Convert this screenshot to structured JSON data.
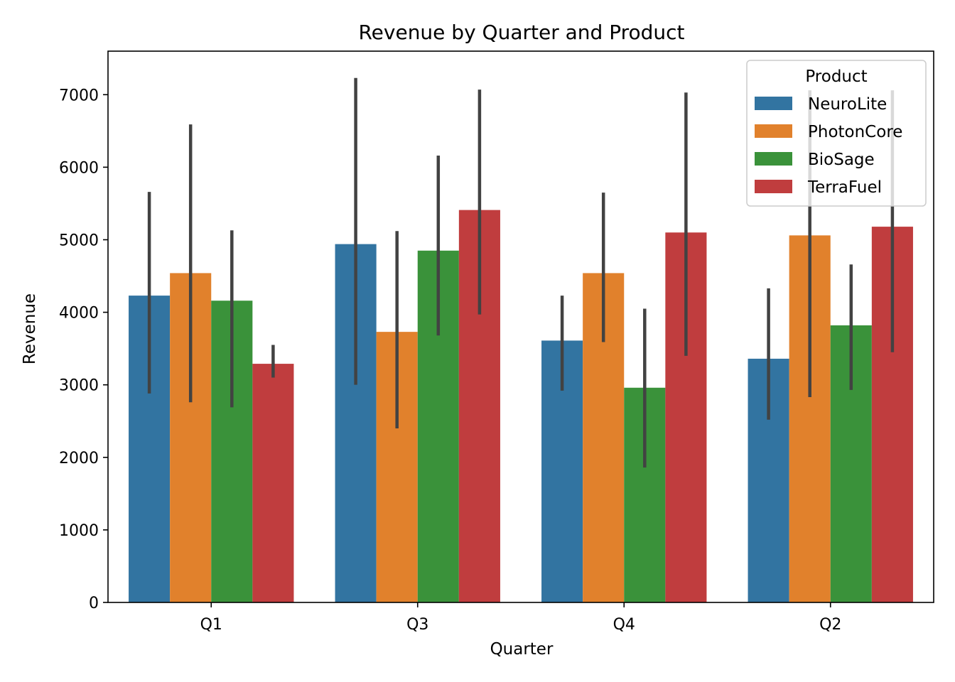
{
  "chart_data": {
    "type": "bar",
    "title": "Revenue by Quarter and Product",
    "xlabel": "Quarter",
    "ylabel": "Revenue",
    "categories": [
      "Q1",
      "Q3",
      "Q4",
      "Q2"
    ],
    "ylim": [
      0,
      7600
    ],
    "yticks": [
      0,
      1000,
      2000,
      3000,
      4000,
      5000,
      6000,
      7000
    ],
    "grid": false,
    "legend": {
      "title": "Product",
      "placement": "top-right"
    },
    "series": [
      {
        "name": "NeuroLite",
        "color": "#3274a1",
        "values": [
          4230,
          4940,
          3610,
          3360
        ],
        "error_low": [
          2880,
          3000,
          2920,
          2520
        ],
        "error_high": [
          5660,
          7230,
          4230,
          4330
        ]
      },
      {
        "name": "PhotonCore",
        "color": "#e1812c",
        "values": [
          4540,
          3730,
          4540,
          5060
        ],
        "error_low": [
          2760,
          2400,
          3590,
          2830
        ],
        "error_high": [
          6590,
          5120,
          5650,
          7060
        ]
      },
      {
        "name": "BioSage",
        "color": "#3a923a",
        "values": [
          4160,
          4850,
          2960,
          3820
        ],
        "error_low": [
          2690,
          3680,
          1860,
          2930
        ],
        "error_high": [
          5130,
          6160,
          4050,
          4660
        ]
      },
      {
        "name": "TerraFuel",
        "color": "#c03d3e",
        "values": [
          3290,
          5410,
          5100,
          5180
        ],
        "error_low": [
          3100,
          3970,
          3400,
          3450
        ],
        "error_high": [
          3550,
          7070,
          7030,
          7060
        ]
      }
    ]
  }
}
